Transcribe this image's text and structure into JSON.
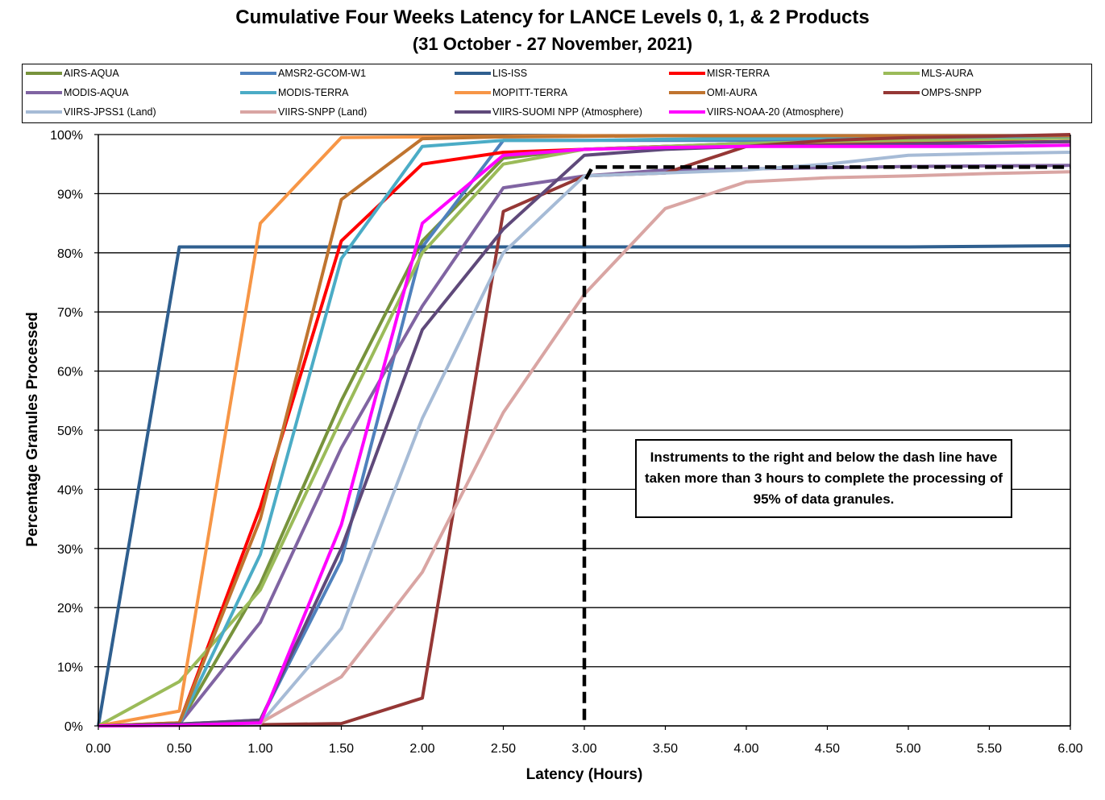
{
  "chart_data": {
    "type": "line",
    "title": "Cumulative Four Weeks Latency  for LANCE Levels 0, 1, & 2 Products",
    "subtitle": "(31  October   -  27  November,  2021)",
    "xlabel": "Latency (Hours)",
    "ylabel": "Percentage Granules Processed",
    "x": [
      0,
      0.5,
      1,
      1.5,
      2,
      2.5,
      3,
      3.5,
      4,
      4.5,
      5,
      5.5,
      6
    ],
    "x_tick_labels": [
      "0.00",
      "0.50",
      "1.00",
      "1.50",
      "2.00",
      "2.50",
      "3.00",
      "3.50",
      "4.00",
      "4.50",
      "5.00",
      "5.50",
      "6.00"
    ],
    "y_tick_labels": [
      "0%",
      "10%",
      "20%",
      "30%",
      "40%",
      "50%",
      "60%",
      "70%",
      "80%",
      "90%",
      "100%"
    ],
    "xlim": [
      0,
      6
    ],
    "ylim": [
      0,
      100
    ],
    "grid": "horizontal",
    "legend_position": "top",
    "series": [
      {
        "name": "AIRS-AQUA",
        "color": "#77933C",
        "values": [
          0,
          0.3,
          24,
          55,
          82,
          96,
          97.5,
          98,
          98.5,
          98.8,
          99,
          99.2,
          99.5
        ]
      },
      {
        "name": "AMSR2-GCOM-W1",
        "color": "#4F81BD",
        "values": [
          0,
          0.3,
          1,
          28,
          81,
          99,
          99,
          99,
          99,
          99.2,
          99.3,
          99.4,
          99.5
        ]
      },
      {
        "name": "LIS-ISS",
        "color": "#2F5F8F",
        "values": [
          0,
          81,
          81,
          81,
          81,
          81,
          81,
          81,
          81,
          81,
          81,
          81.1,
          81.2
        ]
      },
      {
        "name": "MISR-TERRA",
        "color": "#FF0000",
        "values": [
          0,
          0.5,
          37,
          82,
          95,
          97,
          97.5,
          98,
          98.3,
          98.5,
          98.6,
          98.7,
          98.8
        ]
      },
      {
        "name": "MLS-AURA",
        "color": "#9BBB59",
        "values": [
          0,
          7.5,
          23,
          52,
          80,
          95,
          97.5,
          98,
          98.5,
          98.8,
          99,
          99.2,
          99.4
        ]
      },
      {
        "name": "MODIS-AQUA",
        "color": "#8064A2",
        "values": [
          0,
          0.3,
          17.5,
          47,
          71,
          91,
          93,
          94,
          94.2,
          94.4,
          94.6,
          94.7,
          94.8
        ]
      },
      {
        "name": "MODIS-TERRA",
        "color": "#4BACC6",
        "values": [
          0,
          0.3,
          29,
          79,
          98,
          99,
          99,
          99.2,
          99.3,
          99.4,
          99.5,
          99.6,
          99.7
        ]
      },
      {
        "name": "MOPITT-TERRA",
        "color": "#F79646",
        "values": [
          0,
          2.5,
          85,
          99.5,
          99.6,
          99.7,
          99.8,
          99.8,
          99.8,
          99.8,
          99.8,
          99.8,
          99.8
        ]
      },
      {
        "name": "OMI-AURA",
        "color": "#C0742F",
        "values": [
          0,
          0.5,
          35,
          89,
          99.3,
          99.6,
          99.7,
          99.8,
          99.8,
          99.8,
          99.8,
          99.8,
          99.8
        ]
      },
      {
        "name": "OMPS-SNPP",
        "color": "#953735",
        "values": [
          0,
          0.1,
          0.2,
          0.4,
          4.7,
          87,
          93,
          93.5,
          98,
          99,
          99.5,
          99.7,
          100
        ]
      },
      {
        "name": "VIIRS-JPSS1 (Land)",
        "color": "#A6BBD6",
        "values": [
          0,
          0.1,
          0.4,
          16.5,
          52,
          80,
          93,
          93.5,
          94,
          95,
          96.5,
          96.8,
          97
        ]
      },
      {
        "name": "VIIRS-SNPP (Land)",
        "color": "#D9A5A3",
        "values": [
          0,
          0.1,
          0.5,
          8.3,
          26,
          53,
          73,
          87.5,
          92,
          92.7,
          93,
          93.4,
          93.7
        ]
      },
      {
        "name": "VIIRS-SUOMI NPP (Atmosphere)",
        "color": "#5F497A",
        "values": [
          0,
          0.3,
          1,
          30,
          67,
          84,
          96.5,
          97.5,
          98,
          98.2,
          98.4,
          98.6,
          98.8
        ]
      },
      {
        "name": "VIIRS-NOAA-20 (Atmosphere)",
        "color": "#FF00FF",
        "values": [
          0,
          0.1,
          0.5,
          34,
          85,
          96.5,
          97.5,
          97.8,
          98,
          98,
          98,
          98,
          98.2
        ]
      }
    ],
    "threshold_line": {
      "x": [
        3,
        3,
        3.05,
        6
      ],
      "y": [
        1,
        92,
        94.5,
        94.5
      ]
    },
    "annotation": "Instruments to the right and below the dash line have taken more than 3 hours to complete the processing of 95% of data granules."
  }
}
